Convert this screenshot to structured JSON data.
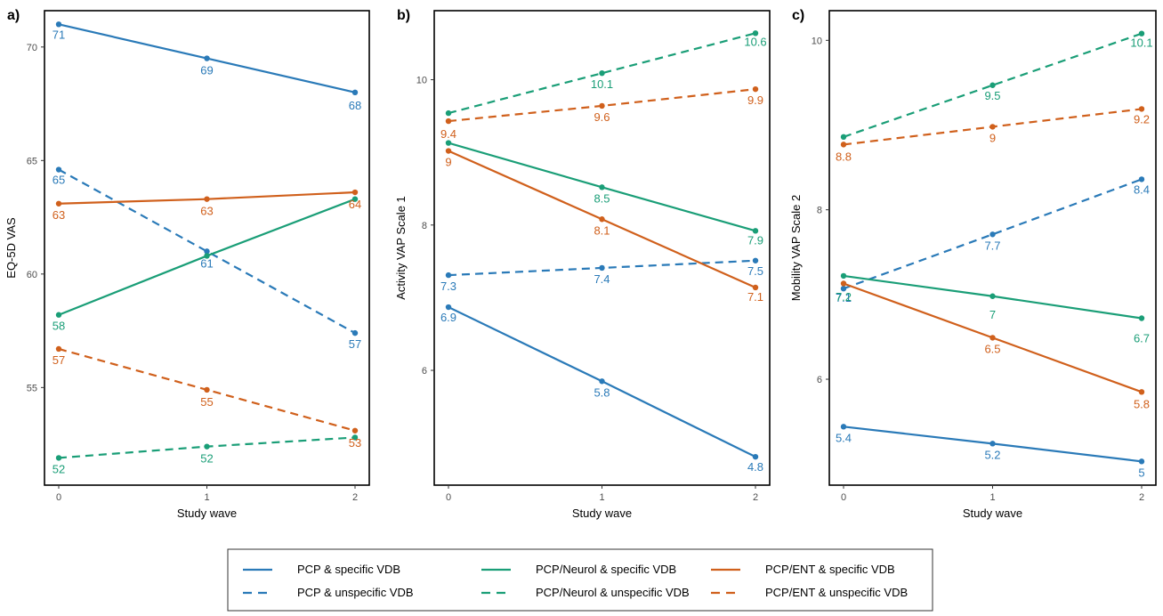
{
  "legend": {
    "items": [
      {
        "label": "PCP & specific VDB",
        "color": "#2a7ab8",
        "dash": "solid"
      },
      {
        "label": "PCP & unspecific VDB",
        "color": "#2a7ab8",
        "dash": "dashed"
      },
      {
        "label": "PCP/Neurol & specific VDB",
        "color": "#1a9e77",
        "dash": "solid"
      },
      {
        "label": "PCP/Neurol & unspecific VDB",
        "color": "#1a9e77",
        "dash": "dashed"
      },
      {
        "label": "PCP/ENT & specific VDB",
        "color": "#d0601c",
        "dash": "solid"
      },
      {
        "label": "PCP/ENT & unspecific VDB",
        "color": "#d0601c",
        "dash": "dashed"
      }
    ]
  },
  "chart_data": [
    {
      "type": "line",
      "panel_label": "a)",
      "xlabel": "Study wave",
      "ylabel": "EQ-5D VAS",
      "x": [
        0,
        1,
        2
      ],
      "x_ticks": [
        "0",
        "1",
        "2"
      ],
      "ylim": [
        50.7,
        71.6
      ],
      "y_ticks": [
        55,
        60,
        65,
        70
      ],
      "y_tick_labels": [
        "55",
        "60",
        "65",
        "70"
      ],
      "grid": false,
      "series": [
        {
          "name": "PCP & specific VDB",
          "color": "#2a7ab8",
          "dash": "solid",
          "values": [
            71.0,
            69.5,
            68.0
          ],
          "labels": [
            "71",
            "69",
            "68"
          ]
        },
        {
          "name": "PCP & unspecific VDB",
          "color": "#2a7ab8",
          "dash": "dashed",
          "values": [
            64.6,
            61.0,
            57.4
          ],
          "labels": [
            "65",
            "61",
            "57"
          ]
        },
        {
          "name": "PCP/Neurol & specific VDB",
          "color": "#1a9e77",
          "dash": "solid",
          "values": [
            58.2,
            60.8,
            63.3
          ],
          "labels": [
            "58",
            "",
            ""
          ]
        },
        {
          "name": "PCP/Neurol & unspecific VDB",
          "color": "#1a9e77",
          "dash": "dashed",
          "values": [
            51.9,
            52.4,
            52.8
          ],
          "labels": [
            "52",
            "52",
            ""
          ]
        },
        {
          "name": "PCP/ENT & specific VDB",
          "color": "#d0601c",
          "dash": "solid",
          "values": [
            63.1,
            63.3,
            63.6
          ],
          "labels": [
            "63",
            "63",
            "64"
          ]
        },
        {
          "name": "PCP/ENT & unspecific VDB",
          "color": "#d0601c",
          "dash": "dashed",
          "values": [
            56.7,
            54.9,
            53.1
          ],
          "labels": [
            "57",
            "55",
            "53"
          ]
        }
      ]
    },
    {
      "type": "line",
      "panel_label": "b)",
      "xlabel": "Study wave",
      "ylabel": "Activity VAP Scale 1",
      "x": [
        0,
        1,
        2
      ],
      "x_ticks": [
        "0",
        "1",
        "2"
      ],
      "ylim": [
        4.42,
        10.95
      ],
      "y_ticks": [
        6,
        8,
        10
      ],
      "y_tick_labels": [
        "6",
        "8",
        "10"
      ],
      "grid": false,
      "series": [
        {
          "name": "PCP & specific VDB",
          "color": "#2a7ab8",
          "dash": "solid",
          "values": [
            6.87,
            5.85,
            4.81
          ],
          "labels": [
            "6.9",
            "5.8",
            "4.8"
          ]
        },
        {
          "name": "PCP & unspecific VDB",
          "color": "#2a7ab8",
          "dash": "dashed",
          "values": [
            7.31,
            7.41,
            7.51
          ],
          "labels": [
            "7.3",
            "7.4",
            "7.5"
          ]
        },
        {
          "name": "PCP/Neurol & specific VDB",
          "color": "#1a9e77",
          "dash": "solid",
          "values": [
            9.13,
            8.52,
            7.92
          ],
          "labels": [
            "",
            "8.5",
            "7.9"
          ]
        },
        {
          "name": "PCP/Neurol & unspecific VDB",
          "color": "#1a9e77",
          "dash": "dashed",
          "values": [
            9.54,
            10.09,
            10.64
          ],
          "labels": [
            "",
            "10.1",
            "10.6"
          ]
        },
        {
          "name": "PCP/ENT & specific VDB",
          "color": "#d0601c",
          "dash": "solid",
          "values": [
            9.02,
            8.08,
            7.14
          ],
          "labels": [
            "9",
            "8.1",
            "7.1"
          ]
        },
        {
          "name": "PCP/ENT & unspecific VDB",
          "color": "#d0601c",
          "dash": "dashed",
          "values": [
            9.43,
            9.64,
            9.87
          ],
          "labels": [
            "9.4",
            "9.6",
            "9.9"
          ]
        }
      ]
    },
    {
      "type": "line",
      "panel_label": "c)",
      "xlabel": "Study wave",
      "ylabel": "Mobility VAP Scale 2",
      "x": [
        0,
        1,
        2
      ],
      "x_ticks": [
        "0",
        "1",
        "2"
      ],
      "ylim": [
        4.75,
        10.35
      ],
      "y_ticks": [
        6,
        8,
        10
      ],
      "y_tick_labels": [
        "6",
        "8",
        "10"
      ],
      "grid": false,
      "series": [
        {
          "name": "PCP & specific VDB",
          "color": "#2a7ab8",
          "dash": "solid",
          "values": [
            5.44,
            5.24,
            5.03
          ],
          "labels": [
            "5.4",
            "5.2",
            "5"
          ]
        },
        {
          "name": "PCP & unspecific VDB",
          "color": "#2a7ab8",
          "dash": "dashed",
          "values": [
            7.07,
            7.71,
            8.36
          ],
          "labels": [
            "7.1",
            "7.7",
            "8.4"
          ]
        },
        {
          "name": "PCP/Neurol & specific VDB",
          "color": "#1a9e77",
          "dash": "solid",
          "values": [
            7.22,
            6.98,
            6.72
          ],
          "labels": [
            "7.2",
            "7",
            "6.7"
          ]
        },
        {
          "name": "PCP/Neurol & unspecific VDB",
          "color": "#1a9e77",
          "dash": "dashed",
          "values": [
            8.86,
            9.47,
            10.08
          ],
          "labels": [
            "",
            "9.5",
            "10.1"
          ]
        },
        {
          "name": "PCP/ENT & specific VDB",
          "color": "#d0601c",
          "dash": "solid",
          "values": [
            7.13,
            6.49,
            5.85
          ],
          "labels": [
            "",
            "6.5",
            "5.8"
          ]
        },
        {
          "name": "PCP/ENT & unspecific VDB",
          "color": "#d0601c",
          "dash": "dashed",
          "values": [
            8.77,
            8.98,
            9.19
          ],
          "labels": [
            "8.8",
            "9",
            "9.2"
          ]
        }
      ]
    }
  ]
}
